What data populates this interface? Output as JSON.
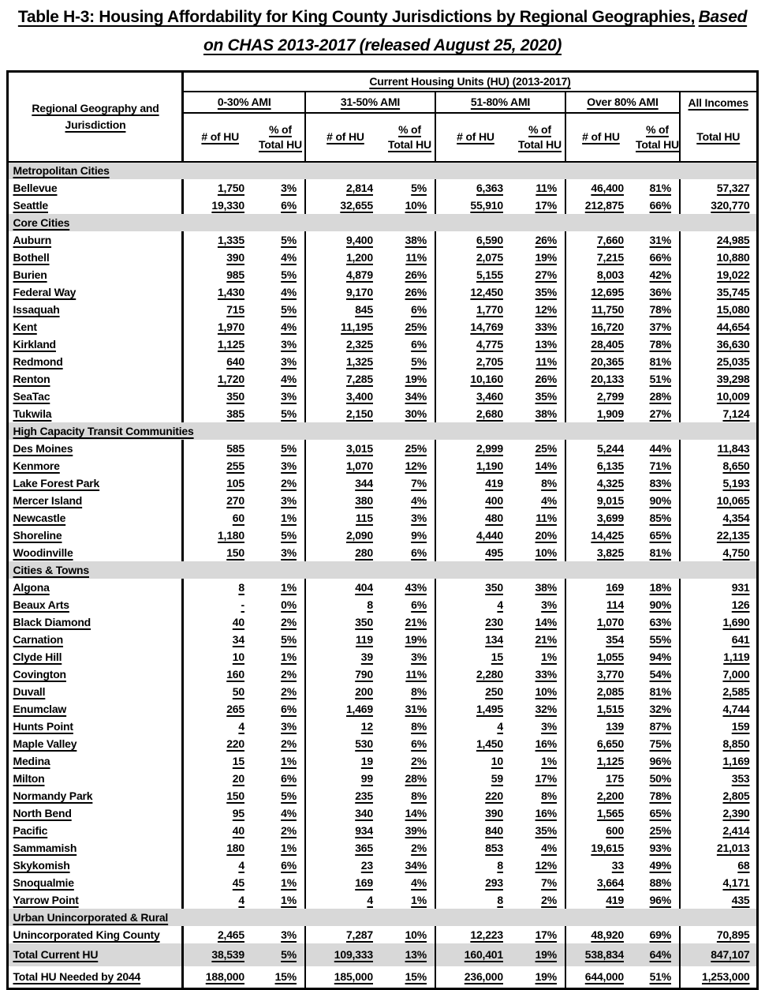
{
  "title": {
    "line1_bold": "Table H-3: Housing Affordability for King County Jurisdictions by Regional Geographies,",
    "line1_italic": "Based",
    "line2_italic": "on CHAS 2013-2017 (released August 25, 2020)"
  },
  "colors": {
    "section_band_bg": "#d8d8d8",
    "table_border": "#000000",
    "text": "#000000"
  },
  "table": {
    "header": {
      "row_label": "Regional Geography and Jurisdiction",
      "span_label": "Current Housing Units (HU) (2013-2017)",
      "groups": [
        "0-30% AMI",
        "31-50% AMI",
        "51-80% AMI",
        "Over 80% AMI"
      ],
      "all_incomes_label": "All Incomes",
      "sub_num": "# of HU",
      "sub_pct": "% of Total HU",
      "sub_total": "Total HU"
    },
    "sections": [
      {
        "label": "Metropolitan Cities",
        "rows": [
          {
            "name": "Bellevue",
            "values": [
              "1,750",
              "3%",
              "2,814",
              "5%",
              "6,363",
              "11%",
              "46,400",
              "81%",
              "57,327"
            ]
          },
          {
            "name": "Seattle",
            "values": [
              "19,330",
              "6%",
              "32,655",
              "10%",
              "55,910",
              "17%",
              "212,875",
              "66%",
              "320,770"
            ]
          }
        ]
      },
      {
        "label": "Core Cities",
        "rows": [
          {
            "name": "Auburn",
            "values": [
              "1,335",
              "5%",
              "9,400",
              "38%",
              "6,590",
              "26%",
              "7,660",
              "31%",
              "24,985"
            ]
          },
          {
            "name": "Bothell",
            "values": [
              "390",
              "4%",
              "1,200",
              "11%",
              "2,075",
              "19%",
              "7,215",
              "66%",
              "10,880"
            ]
          },
          {
            "name": "Burien",
            "values": [
              "985",
              "5%",
              "4,879",
              "26%",
              "5,155",
              "27%",
              "8,003",
              "42%",
              "19,022"
            ]
          },
          {
            "name": "Federal Way",
            "values": [
              "1,430",
              "4%",
              "9,170",
              "26%",
              "12,450",
              "35%",
              "12,695",
              "36%",
              "35,745"
            ]
          },
          {
            "name": "Issaquah",
            "values": [
              "715",
              "5%",
              "845",
              "6%",
              "1,770",
              "12%",
              "11,750",
              "78%",
              "15,080"
            ]
          },
          {
            "name": "Kent",
            "values": [
              "1,970",
              "4%",
              "11,195",
              "25%",
              "14,769",
              "33%",
              "16,720",
              "37%",
              "44,654"
            ]
          },
          {
            "name": "Kirkland",
            "values": [
              "1,125",
              "3%",
              "2,325",
              "6%",
              "4,775",
              "13%",
              "28,405",
              "78%",
              "36,630"
            ]
          },
          {
            "name": "Redmond",
            "values": [
              "640",
              "3%",
              "1,325",
              "5%",
              "2,705",
              "11%",
              "20,365",
              "81%",
              "25,035"
            ]
          },
          {
            "name": "Renton",
            "values": [
              "1,720",
              "4%",
              "7,285",
              "19%",
              "10,160",
              "26%",
              "20,133",
              "51%",
              "39,298"
            ]
          },
          {
            "name": "SeaTac",
            "values": [
              "350",
              "3%",
              "3,400",
              "34%",
              "3,460",
              "35%",
              "2,799",
              "28%",
              "10,009"
            ]
          },
          {
            "name": "Tukwila",
            "values": [
              "385",
              "5%",
              "2,150",
              "30%",
              "2,680",
              "38%",
              "1,909",
              "27%",
              "7,124"
            ]
          }
        ]
      },
      {
        "label": "High Capacity Transit Communities",
        "rows": [
          {
            "name": "Des Moines",
            "values": [
              "585",
              "5%",
              "3,015",
              "25%",
              "2,999",
              "25%",
              "5,244",
              "44%",
              "11,843"
            ]
          },
          {
            "name": "Kenmore",
            "values": [
              "255",
              "3%",
              "1,070",
              "12%",
              "1,190",
              "14%",
              "6,135",
              "71%",
              "8,650"
            ]
          },
          {
            "name": "Lake Forest Park",
            "values": [
              "105",
              "2%",
              "344",
              "7%",
              "419",
              "8%",
              "4,325",
              "83%",
              "5,193"
            ]
          },
          {
            "name": "Mercer Island",
            "values": [
              "270",
              "3%",
              "380",
              "4%",
              "400",
              "4%",
              "9,015",
              "90%",
              "10,065"
            ]
          },
          {
            "name": "Newcastle",
            "values": [
              "60",
              "1%",
              "115",
              "3%",
              "480",
              "11%",
              "3,699",
              "85%",
              "4,354"
            ]
          },
          {
            "name": "Shoreline",
            "values": [
              "1,180",
              "5%",
              "2,090",
              "9%",
              "4,440",
              "20%",
              "14,425",
              "65%",
              "22,135"
            ]
          },
          {
            "name": "Woodinville",
            "values": [
              "150",
              "3%",
              "280",
              "6%",
              "495",
              "10%",
              "3,825",
              "81%",
              "4,750"
            ]
          }
        ]
      },
      {
        "label": "Cities & Towns",
        "rows": [
          {
            "name": "Algona",
            "values": [
              "8",
              "1%",
              "404",
              "43%",
              "350",
              "38%",
              "169",
              "18%",
              "931"
            ]
          },
          {
            "name": "Beaux Arts",
            "values": [
              "-",
              "0%",
              "8",
              "6%",
              "4",
              "3%",
              "114",
              "90%",
              "126"
            ]
          },
          {
            "name": "Black Diamond",
            "values": [
              "40",
              "2%",
              "350",
              "21%",
              "230",
              "14%",
              "1,070",
              "63%",
              "1,690"
            ]
          },
          {
            "name": "Carnation",
            "values": [
              "34",
              "5%",
              "119",
              "19%",
              "134",
              "21%",
              "354",
              "55%",
              "641"
            ]
          },
          {
            "name": "Clyde Hill",
            "values": [
              "10",
              "1%",
              "39",
              "3%",
              "15",
              "1%",
              "1,055",
              "94%",
              "1,119"
            ]
          },
          {
            "name": "Covington",
            "values": [
              "160",
              "2%",
              "790",
              "11%",
              "2,280",
              "33%",
              "3,770",
              "54%",
              "7,000"
            ]
          },
          {
            "name": "Duvall",
            "values": [
              "50",
              "2%",
              "200",
              "8%",
              "250",
              "10%",
              "2,085",
              "81%",
              "2,585"
            ]
          },
          {
            "name": "Enumclaw",
            "values": [
              "265",
              "6%",
              "1,469",
              "31%",
              "1,495",
              "32%",
              "1,515",
              "32%",
              "4,744"
            ]
          },
          {
            "name": "Hunts Point",
            "values": [
              "4",
              "3%",
              "12",
              "8%",
              "4",
              "3%",
              "139",
              "87%",
              "159"
            ]
          },
          {
            "name": "Maple Valley",
            "values": [
              "220",
              "2%",
              "530",
              "6%",
              "1,450",
              "16%",
              "6,650",
              "75%",
              "8,850"
            ]
          },
          {
            "name": "Medina",
            "values": [
              "15",
              "1%",
              "19",
              "2%",
              "10",
              "1%",
              "1,125",
              "96%",
              "1,169"
            ]
          },
          {
            "name": "Milton",
            "values": [
              "20",
              "6%",
              "99",
              "28%",
              "59",
              "17%",
              "175",
              "50%",
              "353"
            ]
          },
          {
            "name": "Normandy Park",
            "values": [
              "150",
              "5%",
              "235",
              "8%",
              "220",
              "8%",
              "2,200",
              "78%",
              "2,805"
            ]
          },
          {
            "name": "North Bend",
            "values": [
              "95",
              "4%",
              "340",
              "14%",
              "390",
              "16%",
              "1,565",
              "65%",
              "2,390"
            ]
          },
          {
            "name": "Pacific",
            "values": [
              "40",
              "2%",
              "934",
              "39%",
              "840",
              "35%",
              "600",
              "25%",
              "2,414"
            ]
          },
          {
            "name": "Sammamish",
            "values": [
              "180",
              "1%",
              "365",
              "2%",
              "853",
              "4%",
              "19,615",
              "93%",
              "21,013"
            ]
          },
          {
            "name": "Skykomish",
            "values": [
              "4",
              "6%",
              "23",
              "34%",
              "8",
              "12%",
              "33",
              "49%",
              "68"
            ]
          },
          {
            "name": "Snoqualmie",
            "values": [
              "45",
              "1%",
              "169",
              "4%",
              "293",
              "7%",
              "3,664",
              "88%",
              "4,171"
            ]
          },
          {
            "name": "Yarrow Point",
            "values": [
              "4",
              "1%",
              "4",
              "1%",
              "8",
              "2%",
              "419",
              "96%",
              "435"
            ]
          }
        ]
      },
      {
        "label": "Urban Unincorporated & Rural",
        "rows": [
          {
            "name": "Unincorporated King County",
            "values": [
              "2,465",
              "3%",
              "7,287",
              "10%",
              "12,223",
              "17%",
              "48,920",
              "69%",
              "70,895"
            ]
          }
        ]
      }
    ],
    "totals": [
      {
        "name": "Total Current HU",
        "shaded": true,
        "values": [
          "38,539",
          "5%",
          "109,333",
          "13%",
          "160,401",
          "19%",
          "538,834",
          "64%",
          "847,107"
        ]
      },
      {
        "name": "Total HU Needed by 2044",
        "shaded": false,
        "values": [
          "188,000",
          "15%",
          "185,000",
          "15%",
          "236,000",
          "19%",
          "644,000",
          "51%",
          "1,253,000"
        ]
      }
    ]
  }
}
